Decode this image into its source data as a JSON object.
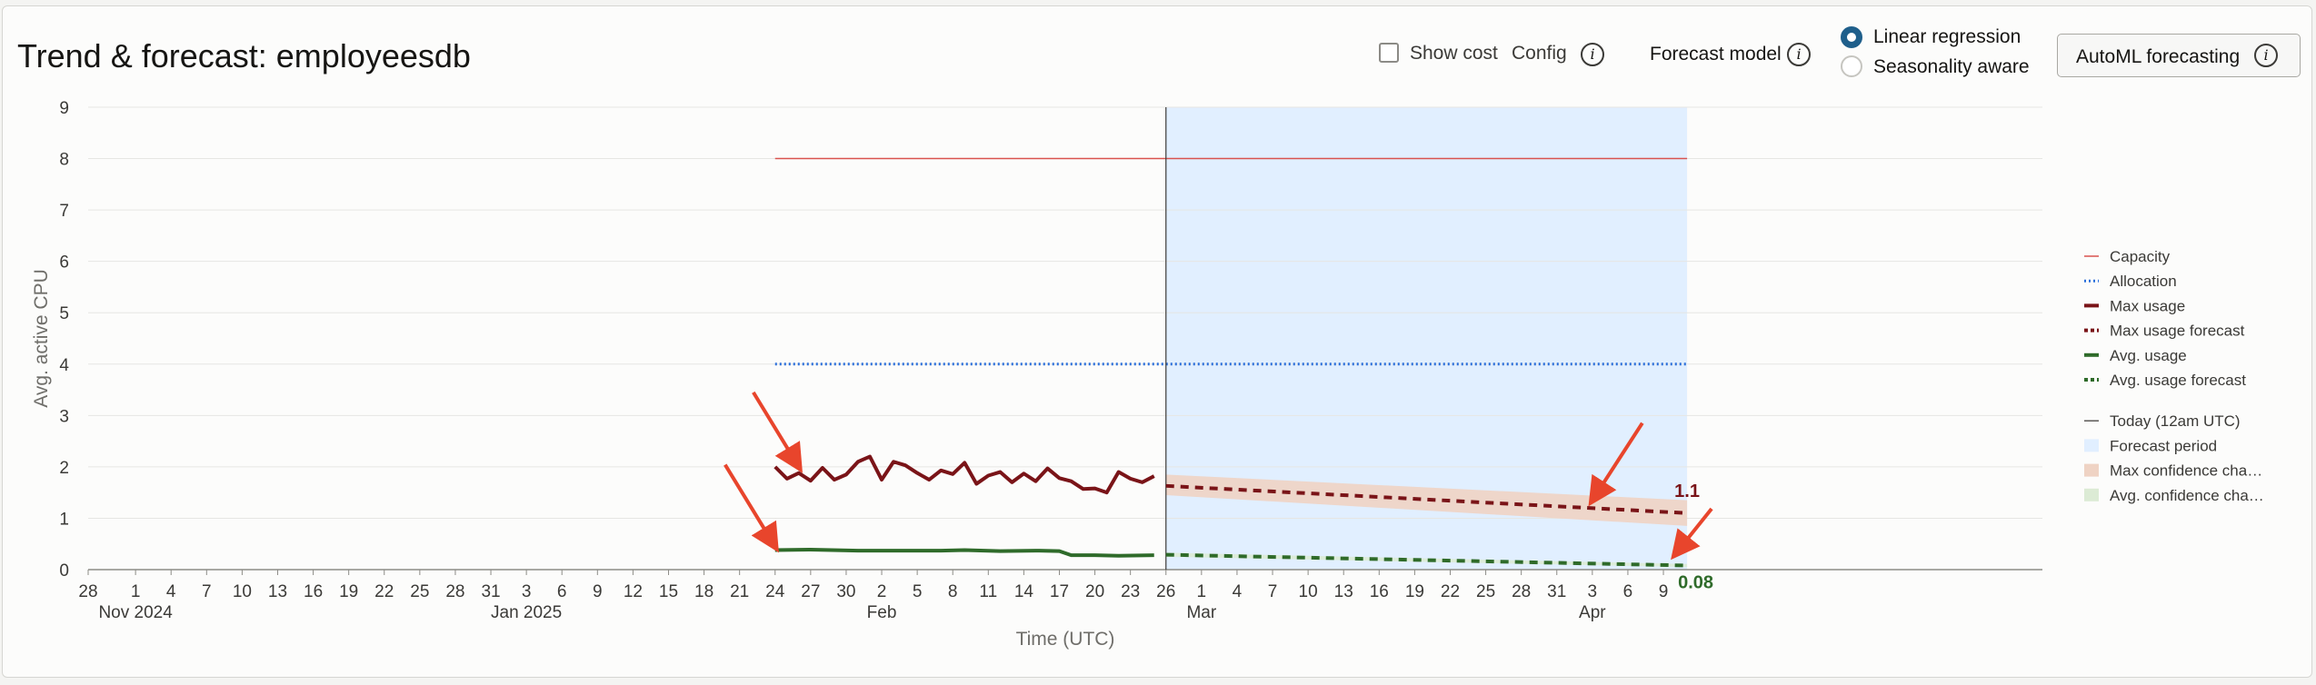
{
  "header": {
    "title": "Trend & forecast: employeesdb",
    "show_cost_label": "Show cost",
    "config_label": "Config",
    "forecast_model_label": "Forecast model",
    "model_options": [
      {
        "label": "Linear regression",
        "selected": true
      },
      {
        "label": "Seasonality aware",
        "selected": false
      }
    ],
    "automl_button": "AutoML forecasting",
    "info_glyph": "i"
  },
  "chart_data": {
    "type": "line",
    "title": "",
    "xlabel": "Time (UTC)",
    "ylabel": "Avg. active CPU",
    "ylim": [
      0,
      9
    ],
    "yticks": [
      "0",
      "1",
      "2",
      "3",
      "4",
      "5",
      "6",
      "7",
      "8",
      "9"
    ],
    "xlim": [
      "2024-10-28",
      "2025-04-11"
    ],
    "xticks": [
      {
        "date": "2024-10-28",
        "label": "28",
        "sub": ""
      },
      {
        "date": "2024-11-01",
        "label": "1",
        "sub": "Nov 2024"
      },
      {
        "date": "2024-11-04",
        "label": "4",
        "sub": ""
      },
      {
        "date": "2024-11-07",
        "label": "7",
        "sub": ""
      },
      {
        "date": "2024-11-10",
        "label": "10",
        "sub": ""
      },
      {
        "date": "2024-11-13",
        "label": "13",
        "sub": ""
      },
      {
        "date": "2024-11-16",
        "label": "16",
        "sub": ""
      },
      {
        "date": "2024-11-19",
        "label": "19",
        "sub": ""
      },
      {
        "date": "2024-11-22",
        "label": "22",
        "sub": ""
      },
      {
        "date": "2024-11-25",
        "label": "25",
        "sub": ""
      },
      {
        "date": "2024-11-28",
        "label": "28",
        "sub": ""
      },
      {
        "date": "2024-12-01",
        "label": "31",
        "sub": ""
      },
      {
        "date": "2024-12-04",
        "label": "3",
        "sub": "Jan 2025"
      },
      {
        "date": "2024-12-07",
        "label": "6",
        "sub": ""
      },
      {
        "date": "2024-12-10",
        "label": "9",
        "sub": ""
      },
      {
        "date": "2024-12-13",
        "label": "12",
        "sub": ""
      },
      {
        "date": "2024-12-16",
        "label": "15",
        "sub": ""
      },
      {
        "date": "2024-12-19",
        "label": "18",
        "sub": ""
      },
      {
        "date": "2024-12-22",
        "label": "21",
        "sub": ""
      },
      {
        "date": "2024-12-25",
        "label": "24",
        "sub": ""
      },
      {
        "date": "2024-12-28",
        "label": "27",
        "sub": ""
      },
      {
        "date": "2024-12-31",
        "label": "30",
        "sub": ""
      },
      {
        "date": "2025-01-03",
        "label": "2",
        "sub": "Feb"
      },
      {
        "date": "2025-01-06",
        "label": "5",
        "sub": ""
      },
      {
        "date": "2025-01-09",
        "label": "8",
        "sub": ""
      },
      {
        "date": "2025-01-12",
        "label": "11",
        "sub": ""
      },
      {
        "date": "2025-01-15",
        "label": "14",
        "sub": ""
      },
      {
        "date": "2025-01-18",
        "label": "17",
        "sub": ""
      },
      {
        "date": "2025-01-21",
        "label": "20",
        "sub": ""
      },
      {
        "date": "2025-01-24",
        "label": "23",
        "sub": ""
      },
      {
        "date": "2025-01-27",
        "label": "26",
        "sub": ""
      },
      {
        "date": "2025-01-30",
        "label": "1",
        "sub": "Mar"
      },
      {
        "date": "2025-02-02",
        "label": "4",
        "sub": ""
      },
      {
        "date": "2025-02-05",
        "label": "7",
        "sub": ""
      },
      {
        "date": "2025-02-08",
        "label": "10",
        "sub": ""
      },
      {
        "date": "2025-02-11",
        "label": "13",
        "sub": ""
      },
      {
        "date": "2025-02-14",
        "label": "16",
        "sub": ""
      },
      {
        "date": "2025-02-17",
        "label": "19",
        "sub": ""
      },
      {
        "date": "2025-02-20",
        "label": "22",
        "sub": ""
      },
      {
        "date": "2025-02-23",
        "label": "25",
        "sub": ""
      },
      {
        "date": "2025-02-26",
        "label": "28",
        "sub": ""
      },
      {
        "date": "2025-03-01",
        "label": "31",
        "sub": ""
      },
      {
        "date": "2025-03-04",
        "label": "3",
        "sub": "Apr"
      },
      {
        "date": "2025-03-07",
        "label": "6",
        "sub": ""
      },
      {
        "date": "2025-03-10",
        "label": "9",
        "sub": ""
      }
    ],
    "today": "2025-01-27",
    "forecast_period": [
      "2025-01-27",
      "2025-03-12"
    ],
    "capacity": {
      "name": "Capacity",
      "value": 8,
      "start": "2024-12-25",
      "end": "2025-03-12",
      "color": "#d9534f"
    },
    "allocation": {
      "name": "Allocation",
      "value": 4,
      "start": "2024-12-25",
      "end": "2025-03-12",
      "color": "#2a6fdb"
    },
    "series": [
      {
        "name": "Max usage",
        "color": "#7a1418",
        "style": "solid",
        "x": [
          "2024-12-25",
          "2024-12-26",
          "2024-12-27",
          "2024-12-28",
          "2024-12-29",
          "2024-12-30",
          "2024-12-31",
          "2025-01-01",
          "2025-01-02",
          "2025-01-03",
          "2025-01-04",
          "2025-01-05",
          "2025-01-06",
          "2025-01-07",
          "2025-01-08",
          "2025-01-09",
          "2025-01-10",
          "2025-01-11",
          "2025-01-12",
          "2025-01-13",
          "2025-01-14",
          "2025-01-15",
          "2025-01-16",
          "2025-01-17",
          "2025-01-18",
          "2025-01-19",
          "2025-01-20",
          "2025-01-21",
          "2025-01-22",
          "2025-01-23",
          "2025-01-24",
          "2025-01-25",
          "2025-01-26"
        ],
        "values": [
          2.0,
          1.77,
          1.88,
          1.73,
          1.98,
          1.75,
          1.85,
          2.1,
          2.2,
          1.75,
          2.1,
          2.03,
          1.88,
          1.75,
          1.93,
          1.86,
          2.08,
          1.67,
          1.83,
          1.9,
          1.7,
          1.87,
          1.72,
          1.97,
          1.78,
          1.72,
          1.57,
          1.58,
          1.5,
          1.9,
          1.77,
          1.7,
          1.82
        ]
      },
      {
        "name": "Max usage forecast",
        "color": "#7a1418",
        "style": "dashed",
        "x": [
          "2025-01-27",
          "2025-03-12"
        ],
        "values": [
          1.63,
          1.1
        ]
      },
      {
        "name": "Avg. usage",
        "color": "#2f6b2a",
        "style": "solid",
        "x": [
          "2024-12-25",
          "2024-12-28",
          "2025-01-01",
          "2025-01-04",
          "2025-01-08",
          "2025-01-10",
          "2025-01-13",
          "2025-01-16",
          "2025-01-18",
          "2025-01-19",
          "2025-01-21",
          "2025-01-23",
          "2025-01-26"
        ],
        "values": [
          0.38,
          0.39,
          0.37,
          0.37,
          0.37,
          0.38,
          0.36,
          0.37,
          0.36,
          0.28,
          0.28,
          0.27,
          0.28
        ]
      },
      {
        "name": "Avg. usage forecast",
        "color": "#2f6b2a",
        "style": "dashed",
        "x": [
          "2025-01-27",
          "2025-03-12"
        ],
        "values": [
          0.29,
          0.08
        ]
      }
    ],
    "bands": [
      {
        "name": "Max confidence cha…",
        "color": "#efd3c4",
        "x": [
          "2025-01-27",
          "2025-03-12"
        ],
        "lower": [
          1.45,
          0.85
        ],
        "upper": [
          1.85,
          1.35
        ]
      },
      {
        "name": "Avg. confidence cha…",
        "color": "#dcebd5",
        "x": [
          "2025-01-27",
          "2025-03-12"
        ],
        "lower": [
          0.25,
          0.05
        ],
        "upper": [
          0.33,
          0.11
        ]
      }
    ],
    "end_labels": [
      {
        "series": "Max usage forecast",
        "text": "1.1",
        "color": "#7a1418"
      },
      {
        "series": "Avg. usage forecast",
        "text": "0.08",
        "color": "#2f6b2a"
      }
    ],
    "annotations": [
      {
        "type": "arrow",
        "color": "#e8452c",
        "target_date": "2024-12-27",
        "target_value": 2.0
      },
      {
        "type": "arrow",
        "color": "#e8452c",
        "target_date": "2024-12-25",
        "target_value": 0.45
      },
      {
        "type": "arrow",
        "color": "#e8452c",
        "target_date": "2025-03-04",
        "target_value": 1.35
      },
      {
        "type": "arrow",
        "color": "#e8452c",
        "target_date": "2025-03-11",
        "target_value": 0.3
      }
    ],
    "grid": true,
    "legend_position": "right",
    "legend": [
      {
        "label": "Capacity",
        "kind": "thin",
        "color": "#d9534f"
      },
      {
        "label": "Allocation",
        "kind": "dotted",
        "color": "#2a6fdb"
      },
      {
        "label": "Max usage",
        "kind": "solid",
        "color": "#7a1418"
      },
      {
        "label": "Max usage forecast",
        "kind": "dashed",
        "color": "#7a1418"
      },
      {
        "label": "Avg. usage",
        "kind": "solid",
        "color": "#2f6b2a"
      },
      {
        "label": "Avg. usage forecast",
        "kind": "dashed",
        "color": "#2f6b2a"
      },
      {
        "label": "Today (12am UTC)",
        "kind": "thin",
        "color": "#5a5955"
      },
      {
        "label": "Forecast period",
        "kind": "box",
        "color": "#e1efff"
      },
      {
        "label": "Max confidence cha…",
        "kind": "box",
        "color": "#efd3c4"
      },
      {
        "label": "Avg. confidence cha…",
        "kind": "box",
        "color": "#dcebd5"
      }
    ]
  }
}
